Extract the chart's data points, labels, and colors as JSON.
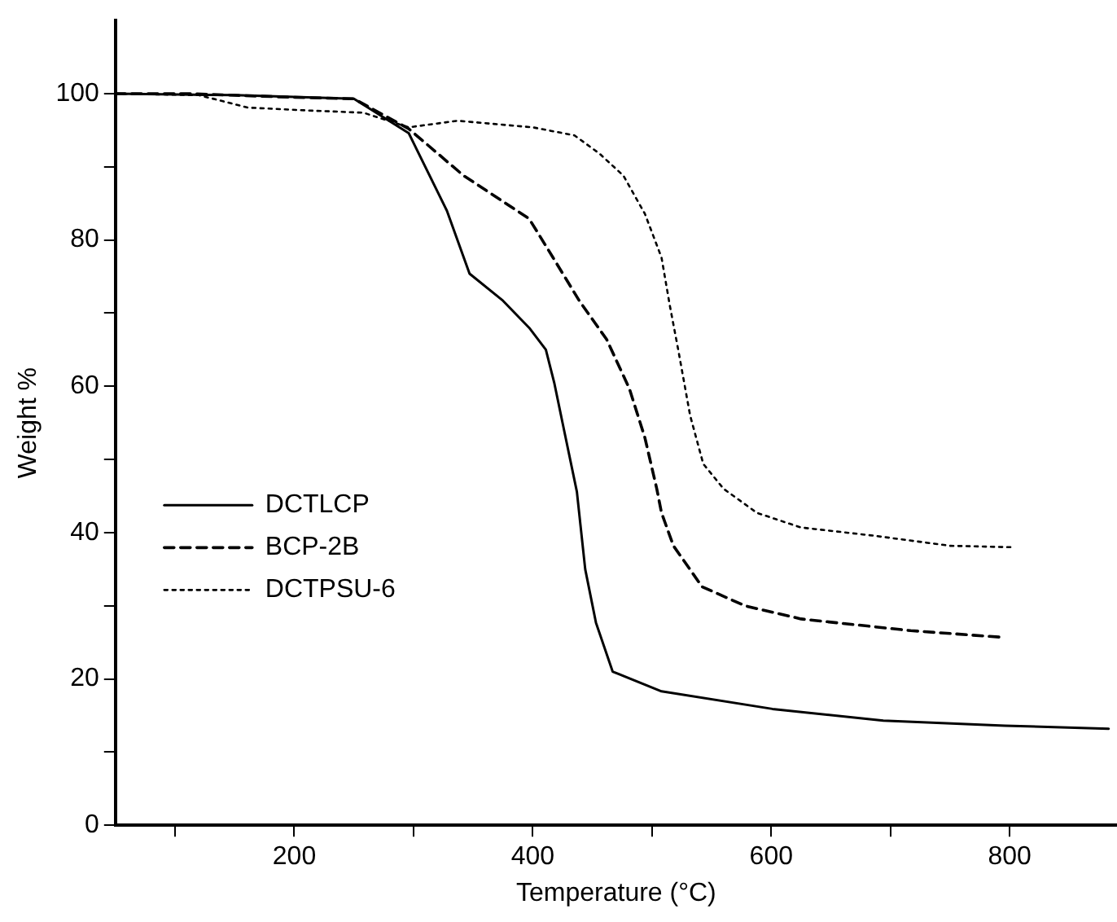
{
  "chart_data": {
    "type": "line",
    "xlabel": "Temperature (°C)",
    "ylabel": "Weight %",
    "xlim": [
      50,
      890
    ],
    "ylim": [
      0,
      110
    ],
    "xticks": [
      {
        "value": 100,
        "label": null
      },
      200,
      {
        "value": 300,
        "label": null
      },
      400,
      {
        "value": 500,
        "label": null
      },
      600,
      {
        "value": 700,
        "label": null
      },
      800
    ],
    "yticks": [
      0,
      {
        "value": 10,
        "label": null
      },
      20,
      {
        "value": 30,
        "label": null
      },
      40,
      {
        "value": 50,
        "label": null
      },
      60,
      {
        "value": 70,
        "label": null
      },
      80,
      {
        "value": 90,
        "label": null
      },
      100
    ],
    "legend": "left",
    "marker": "none",
    "series": [
      {
        "name": "DCTLCP",
        "color": "#000000",
        "line_style": "solid",
        "x": [
          50,
          150,
          250,
          296,
          328,
          347,
          375,
          397,
          411,
          418,
          425,
          437,
          444,
          453,
          467,
          508,
          601,
          694,
          796,
          883
        ],
        "values": [
          100,
          99.8,
          99.3,
          94.6,
          84,
          75.4,
          71.7,
          68,
          65,
          60.5,
          55,
          45.6,
          35,
          27.7,
          21,
          18.3,
          15.9,
          14.3,
          13.6,
          13.2
        ]
      },
      {
        "name": "BCP-2B",
        "color": "#000000",
        "line_style": "dashed",
        "x": [
          50,
          111,
          200,
          250,
          296,
          342,
          397,
          417,
          439,
          462,
          481,
          494,
          504,
          508,
          518,
          542,
          578,
          625,
          717,
          793
        ],
        "values": [
          100,
          100,
          99.5,
          99.3,
          95.2,
          88.8,
          82.9,
          77.6,
          71.7,
          66.4,
          59.7,
          53,
          46,
          42.7,
          38.2,
          32.6,
          30,
          28.2,
          26.6,
          25.7
        ]
      },
      {
        "name": "DCTPSU-6",
        "color": "#000000",
        "line_style": "dotted",
        "x": [
          50,
          120,
          161,
          212,
          258,
          296,
          337,
          400,
          435,
          456,
          476,
          494,
          508,
          515,
          522,
          532,
          543,
          560,
          588,
          625,
          685,
          750,
          803
        ],
        "values": [
          100,
          99.8,
          98.1,
          97.7,
          97.4,
          95.4,
          96.3,
          95.4,
          94.3,
          91.8,
          88.8,
          83.6,
          77.6,
          71,
          65,
          56,
          49.4,
          46,
          42.7,
          40.7,
          39.6,
          38.2,
          38
        ]
      }
    ]
  }
}
